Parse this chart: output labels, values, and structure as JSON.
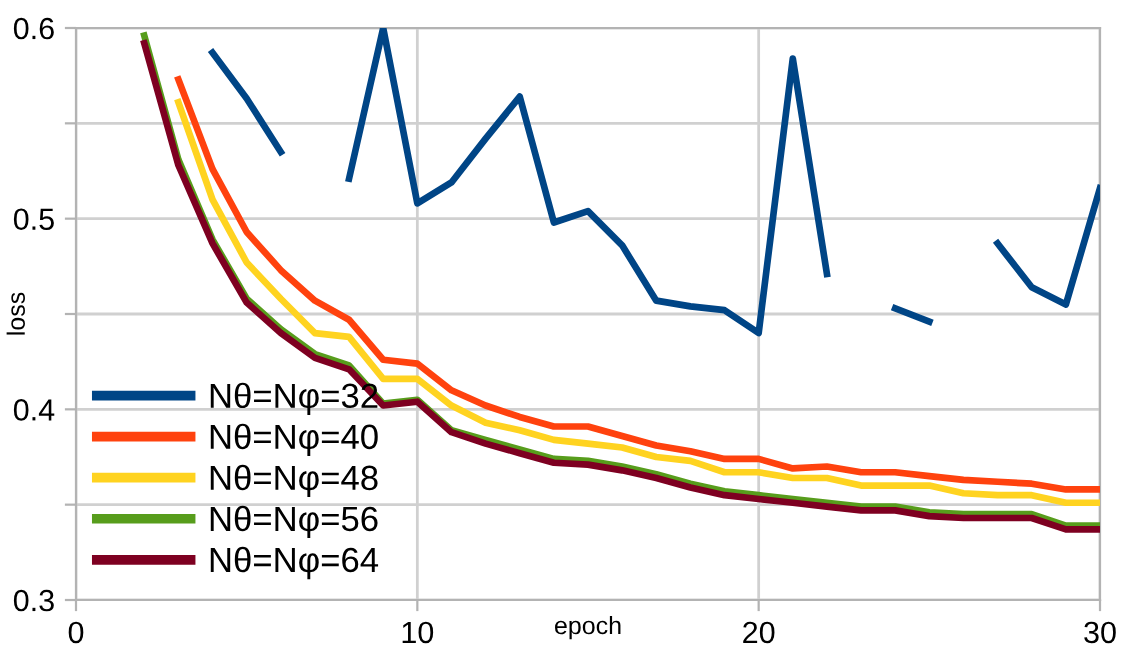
{
  "chart_data": {
    "type": "line",
    "xlabel": "epoch",
    "ylabel": "loss",
    "x": [
      2,
      3,
      4,
      5,
      6,
      7,
      8,
      9,
      10,
      11,
      12,
      13,
      14,
      15,
      16,
      17,
      18,
      19,
      20,
      21,
      22,
      23,
      24,
      25,
      26,
      27,
      28,
      29,
      30
    ],
    "series": [
      {
        "name": "Nθ=Nφ=32",
        "color": "#004586",
        "values": [
          null,
          null,
          0.587,
          0.563,
          0.535,
          null,
          0.521,
          0.6,
          0.508,
          0.519,
          0.542,
          0.564,
          0.498,
          0.504,
          0.486,
          0.457,
          0.454,
          0.452,
          0.44,
          0.584,
          0.471,
          null,
          0.453,
          0.446,
          null,
          0.487,
          0.464,
          0.455,
          0.516
        ]
      },
      {
        "name": "Nθ=Nφ=40",
        "color": "#ff420e",
        "values": [
          null,
          0.573,
          0.526,
          0.493,
          0.473,
          0.457,
          0.447,
          0.426,
          0.424,
          0.41,
          0.402,
          0.396,
          0.391,
          0.391,
          0.386,
          0.381,
          0.378,
          0.374,
          0.374,
          0.369,
          0.37,
          0.367,
          0.367,
          0.365,
          0.363,
          0.362,
          0.361,
          0.358,
          0.358
        ]
      },
      {
        "name": "Nθ=Nφ=48",
        "color": "#ffd320",
        "values": [
          null,
          0.561,
          0.51,
          0.477,
          0.458,
          0.44,
          0.438,
          0.416,
          0.416,
          0.402,
          0.393,
          0.389,
          0.384,
          0.382,
          0.38,
          0.375,
          0.373,
          0.367,
          0.367,
          0.364,
          0.364,
          0.36,
          0.36,
          0.36,
          0.356,
          0.355,
          0.355,
          0.351,
          0.351
        ]
      },
      {
        "name": "Nθ=Nφ=56",
        "color": "#579d1c",
        "values": [
          0.596,
          0.531,
          0.489,
          0.458,
          0.442,
          0.429,
          0.423,
          0.403,
          0.405,
          0.389,
          0.384,
          0.379,
          0.374,
          0.373,
          0.37,
          0.366,
          0.361,
          0.357,
          0.355,
          0.353,
          0.351,
          0.349,
          0.349,
          0.346,
          0.345,
          0.345,
          0.345,
          0.339,
          0.339
        ]
      },
      {
        "name": "Nθ=Nφ=64",
        "color": "#7e0021",
        "values": [
          0.592,
          0.528,
          0.487,
          0.456,
          0.44,
          0.427,
          0.421,
          0.402,
          0.404,
          0.388,
          0.382,
          0.377,
          0.372,
          0.371,
          0.368,
          0.364,
          0.359,
          0.355,
          0.353,
          0.351,
          0.349,
          0.347,
          0.347,
          0.344,
          0.343,
          0.343,
          0.343,
          0.337,
          0.337
        ]
      }
    ],
    "xlim": [
      0,
      30
    ],
    "xticks": [
      0,
      10,
      20,
      30
    ],
    "ylim": [
      0.3,
      0.6
    ],
    "yticks": [
      0.3,
      {
        "value": 0.35,
        "label": null
      },
      0.4,
      {
        "value": 0.45,
        "label": null
      },
      0.5,
      {
        "value": 0.55,
        "label": null
      },
      0.6
    ],
    "grid": true,
    "legend": "bottom left",
    "marker": "none",
    "line_style": "solid"
  }
}
